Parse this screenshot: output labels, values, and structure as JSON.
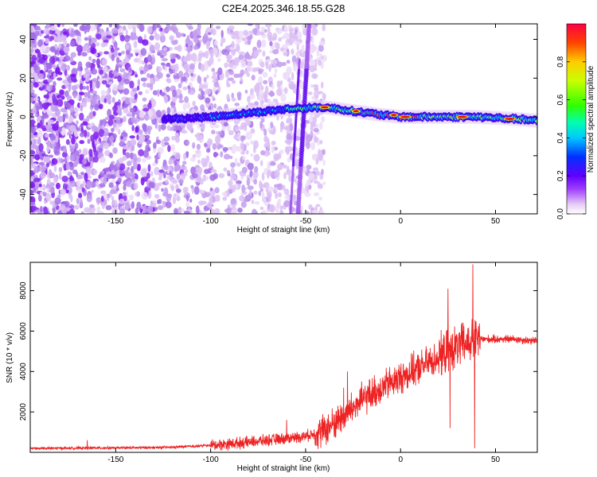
{
  "title": "C2E4.2025.346.18.55.G28",
  "chart_data": [
    {
      "type": "heatmap",
      "xlabel": "Height of straight line (km)",
      "ylabel": "Frequency (Hz)",
      "xlim": [
        -195,
        72
      ],
      "ylim": [
        -50,
        48
      ],
      "xticks": [
        -150,
        -100,
        -50,
        0,
        50
      ],
      "yticks": [
        -40,
        -20,
        0,
        20,
        40
      ],
      "colorbar": {
        "label": "Normalized spectral amplitude",
        "range": [
          0,
          1
        ],
        "ticks": [
          0.0,
          0.2,
          0.4,
          0.6,
          0.8
        ],
        "tick_labels": [
          "0.0",
          "0.2",
          "0.4",
          "0.6",
          "0.8"
        ]
      },
      "ridge": {
        "description_points": [
          [
            -120,
            -1
          ],
          [
            -100,
            0
          ],
          [
            -80,
            2
          ],
          [
            -60,
            4
          ],
          [
            -40,
            5
          ],
          [
            -25,
            3
          ],
          [
            -10,
            1
          ],
          [
            0,
            0
          ],
          [
            20,
            0
          ],
          [
            40,
            0
          ],
          [
            60,
            -1
          ],
          [
            72,
            -2
          ]
        ]
      },
      "colors": {
        "low": "#e8d8f4",
        "mid_low": "#8800ee",
        "mid": "#00ccdd",
        "mid_high": "#44ee22",
        "high": "#dd1111"
      }
    },
    {
      "type": "line",
      "xlabel": "Height of straight line (km)",
      "ylabel": "SNR (10 * v/v)",
      "xlim": [
        -195,
        72
      ],
      "ylim": [
        0,
        9400
      ],
      "xticks": [
        -150,
        -100,
        -50,
        0,
        50
      ],
      "yticks": [
        2000,
        4000,
        6000,
        8000
      ],
      "series": [
        {
          "name": "SNR",
          "color": "#ee2222",
          "trend_x": [
            -195,
            -150,
            -120,
            -100,
            -80,
            -60,
            -50,
            -40,
            -30,
            -20,
            -10,
            0,
            10,
            20,
            25,
            30,
            35,
            40,
            45,
            50,
            60,
            72
          ],
          "trend_y": [
            200,
            220,
            250,
            350,
            500,
            700,
            800,
            1100,
            1800,
            2600,
            3200,
            3700,
            4200,
            4700,
            5000,
            5200,
            5400,
            5600,
            5600,
            5600,
            5600,
            5500
          ],
          "spikes": [
            [
              -165,
              600
            ],
            [
              -60,
              1600
            ],
            [
              -30,
              3200
            ],
            [
              -28,
              4000
            ],
            [
              25,
              8100
            ],
            [
              26,
              1200
            ],
            [
              38,
              9300
            ],
            [
              39,
              200
            ],
            [
              33,
              6400
            ]
          ]
        }
      ]
    }
  ]
}
